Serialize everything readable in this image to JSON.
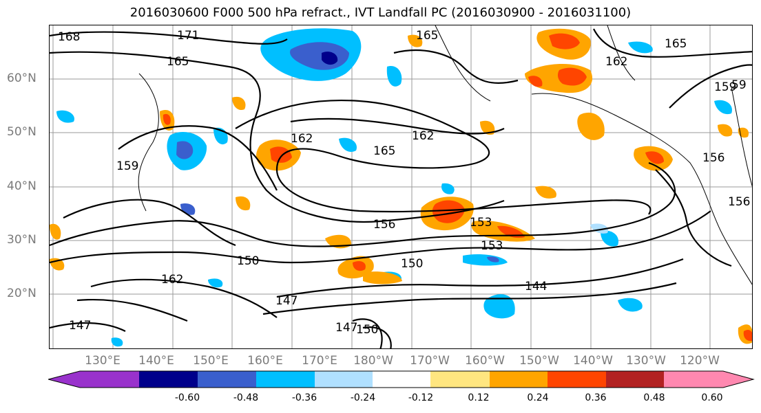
{
  "title": "2016030600 F000 500 hPa refract., IVT Landfall PC (2016030900 - 2016031100)",
  "lat_ticks": [
    "60°N",
    "50°N",
    "40°N",
    "30°N",
    "20°N"
  ],
  "lon_ticks": [
    "130°E",
    "140°E",
    "150°E",
    "160°E",
    "170°E",
    "180°W",
    "170°W",
    "160°W",
    "150°W",
    "140°W",
    "130°W",
    "120°W"
  ],
  "contour_labels": [
    "168",
    "171",
    "165",
    "165",
    "165",
    "162",
    "162",
    "162",
    "159",
    "162",
    "165",
    "159",
    "156",
    "156",
    "153",
    "153",
    "150",
    "150",
    "144",
    "147",
    "147",
    "150",
    "147",
    "162",
    "156",
    "59"
  ],
  "colorbar": {
    "tick_labels": [
      "-0.60",
      "-0.48",
      "-0.36",
      "-0.24",
      "-0.12",
      "0.12",
      "0.24",
      "0.36",
      "0.48",
      "0.60"
    ],
    "colors": [
      "#9932cc",
      "#00008b",
      "#3a5fcd",
      "#00bfff",
      "#b0e0ff",
      "#ffffff",
      "#ffe680",
      "#ffa500",
      "#ff4500",
      "#b22222",
      "#ff88b0"
    ]
  }
}
